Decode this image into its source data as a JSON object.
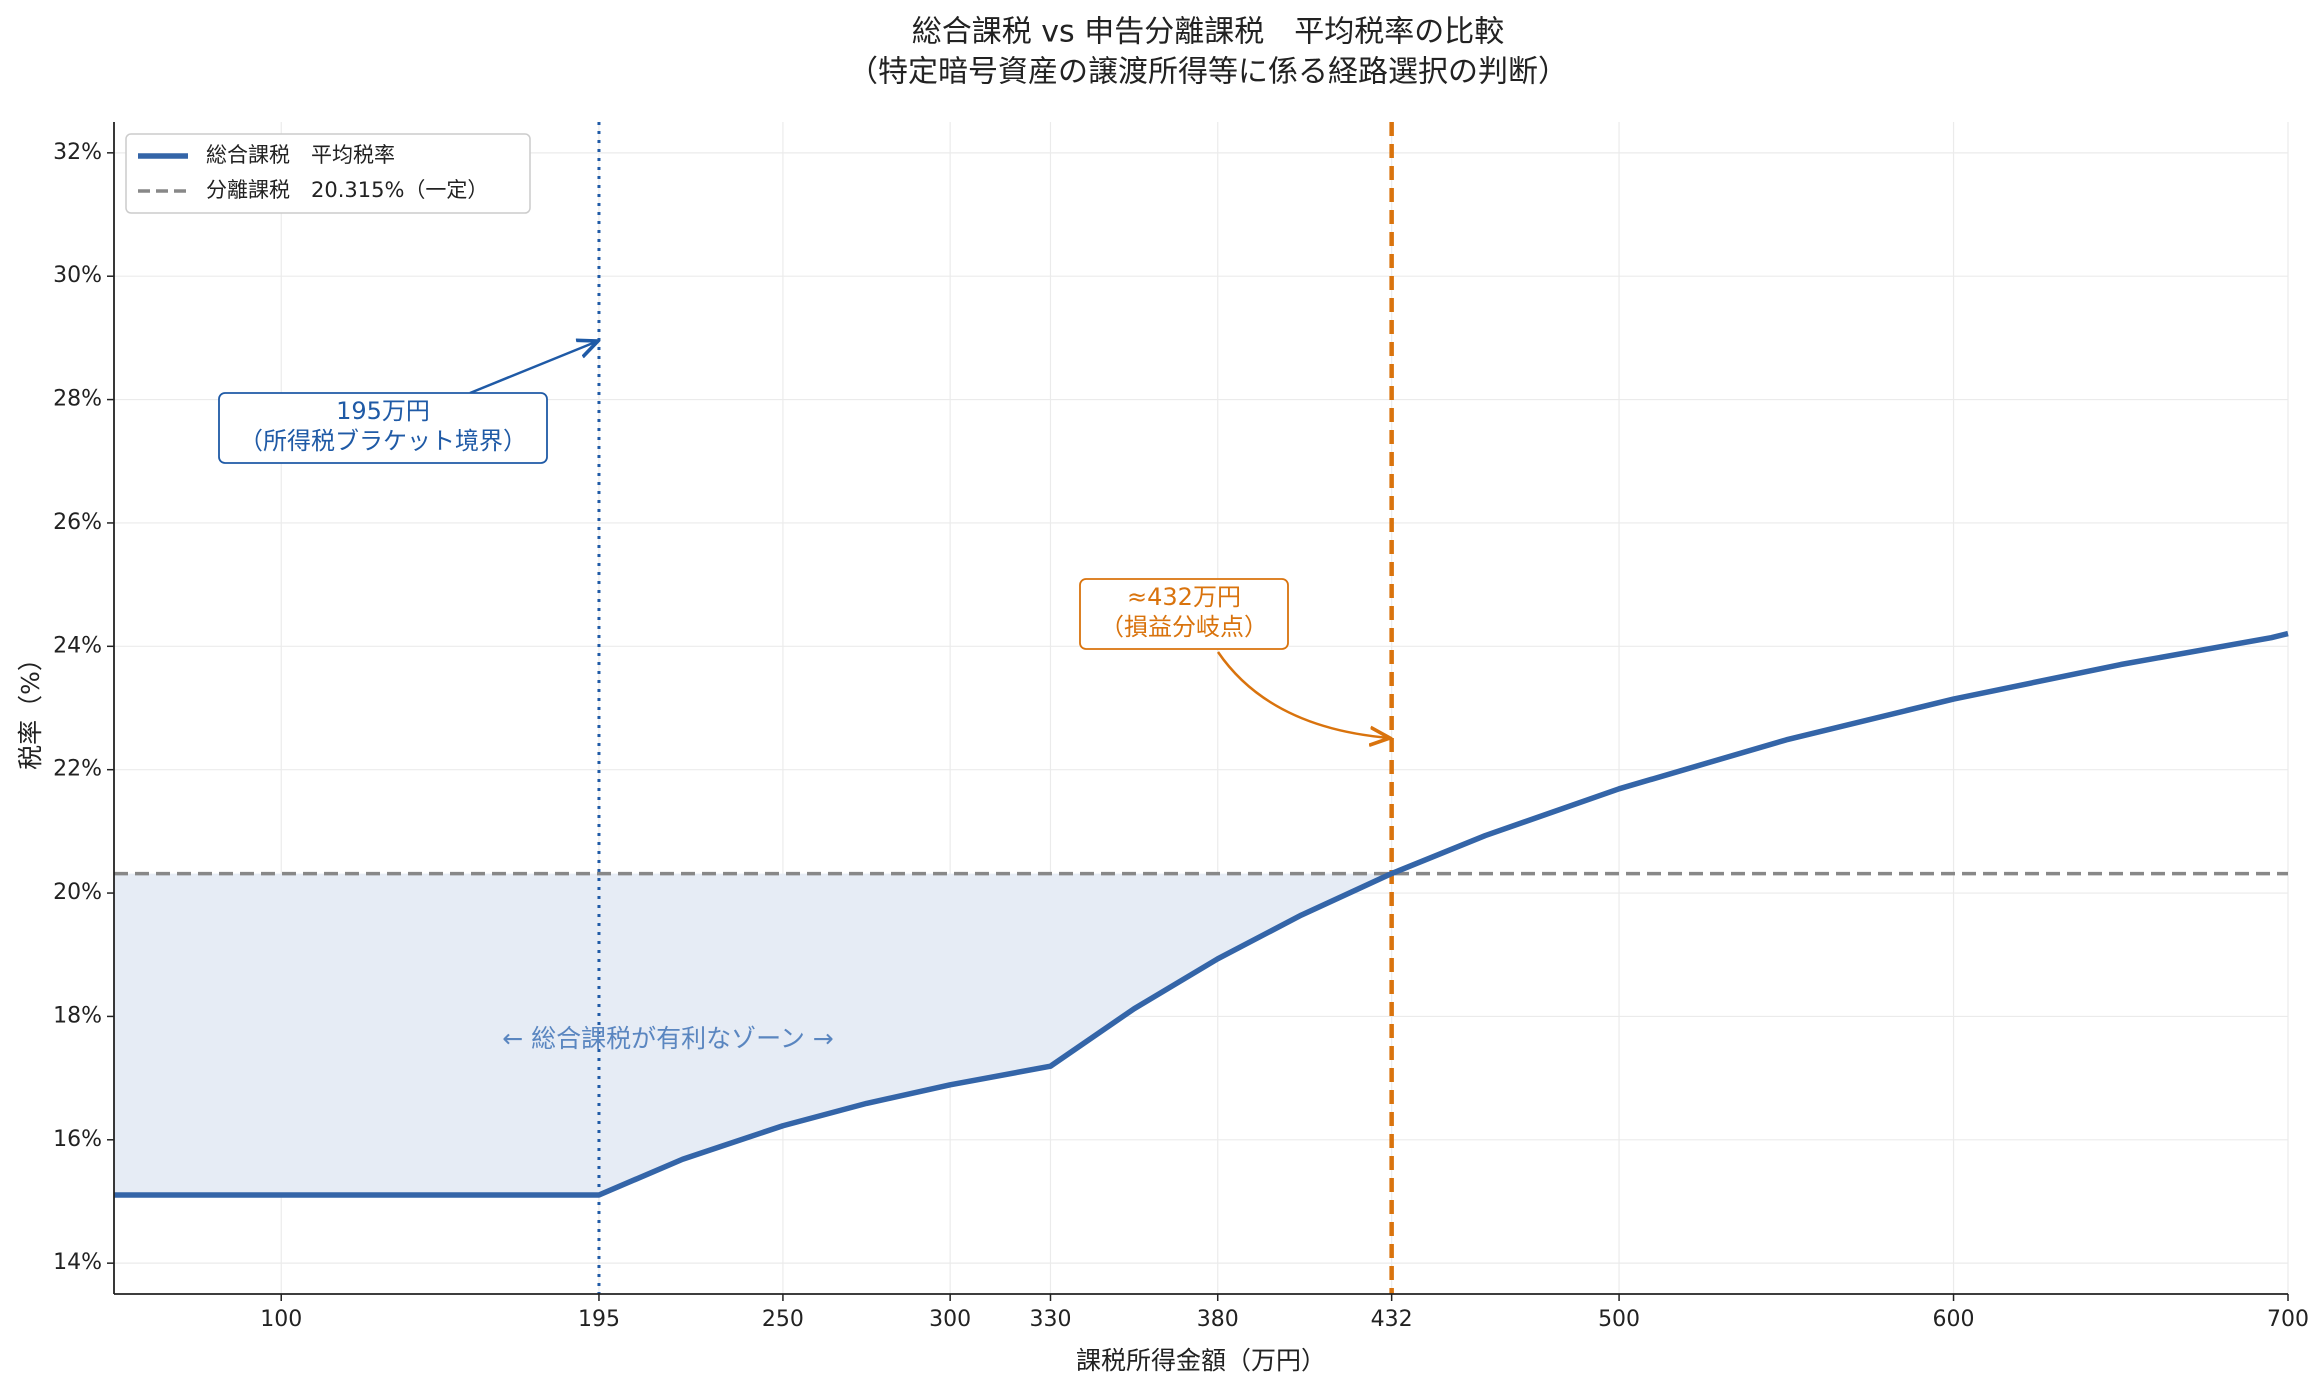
{
  "chart_data": {
    "type": "line",
    "title": [
      "総合課税 vs 申告分離課税　平均税率の比較",
      "（特定暗号資産の譲渡所得等に係る経路選択の判断）"
    ],
    "xlabel": "課税所得金額（万円）",
    "ylabel": "税率（%）",
    "xlim": [
      50,
      700
    ],
    "ylim": [
      13.5,
      32.5
    ],
    "xticks": [
      100,
      195,
      250,
      300,
      330,
      380,
      432,
      500,
      600,
      700
    ],
    "yticks": [
      {
        "value": 14,
        "label": "14%"
      },
      {
        "value": 16,
        "label": "16%"
      },
      {
        "value": 18,
        "label": "18%"
      },
      {
        "value": 20,
        "label": "20%"
      },
      {
        "value": 22,
        "label": "22%"
      },
      {
        "value": 24,
        "label": "24%"
      },
      {
        "value": 26,
        "label": "26%"
      },
      {
        "value": 28,
        "label": "28%"
      },
      {
        "value": 30,
        "label": "30%"
      },
      {
        "value": 32,
        "label": "32%"
      }
    ],
    "grid": true,
    "legend": "upper left",
    "series": [
      {
        "name": "総合課税　平均税率",
        "color": "#3465a8",
        "x": [
          50,
          100,
          150,
          195,
          220,
          250,
          275,
          300,
          330,
          355,
          380,
          405,
          432,
          460,
          500,
          550,
          600,
          650,
          695,
          700
        ],
        "values": [
          15.105,
          15.105,
          15.105,
          15.105,
          15.685,
          16.228,
          16.59,
          16.892,
          17.193,
          18.125,
          18.934,
          19.643,
          20.316,
          20.932,
          21.69,
          22.484,
          23.145,
          23.705,
          24.14,
          24.206
        ]
      }
    ],
    "hline": {
      "name": "分離課税　20.315%（一定）",
      "value": 20.315,
      "color": "#888888"
    },
    "vlines": [
      {
        "value": 195,
        "color": "#1f5aa6"
      },
      {
        "value": 432,
        "color": "#d9730d"
      }
    ],
    "annotations": [
      {
        "lines": [
          "195万円",
          "（所得税ブラケット境界）"
        ],
        "color": "#1f5aa6"
      },
      {
        "lines": [
          "≈432万円",
          "（損益分岐点）"
        ],
        "color": "#d9730d"
      }
    ],
    "zone_label": "←  総合課税が有利なゾーン  →"
  }
}
